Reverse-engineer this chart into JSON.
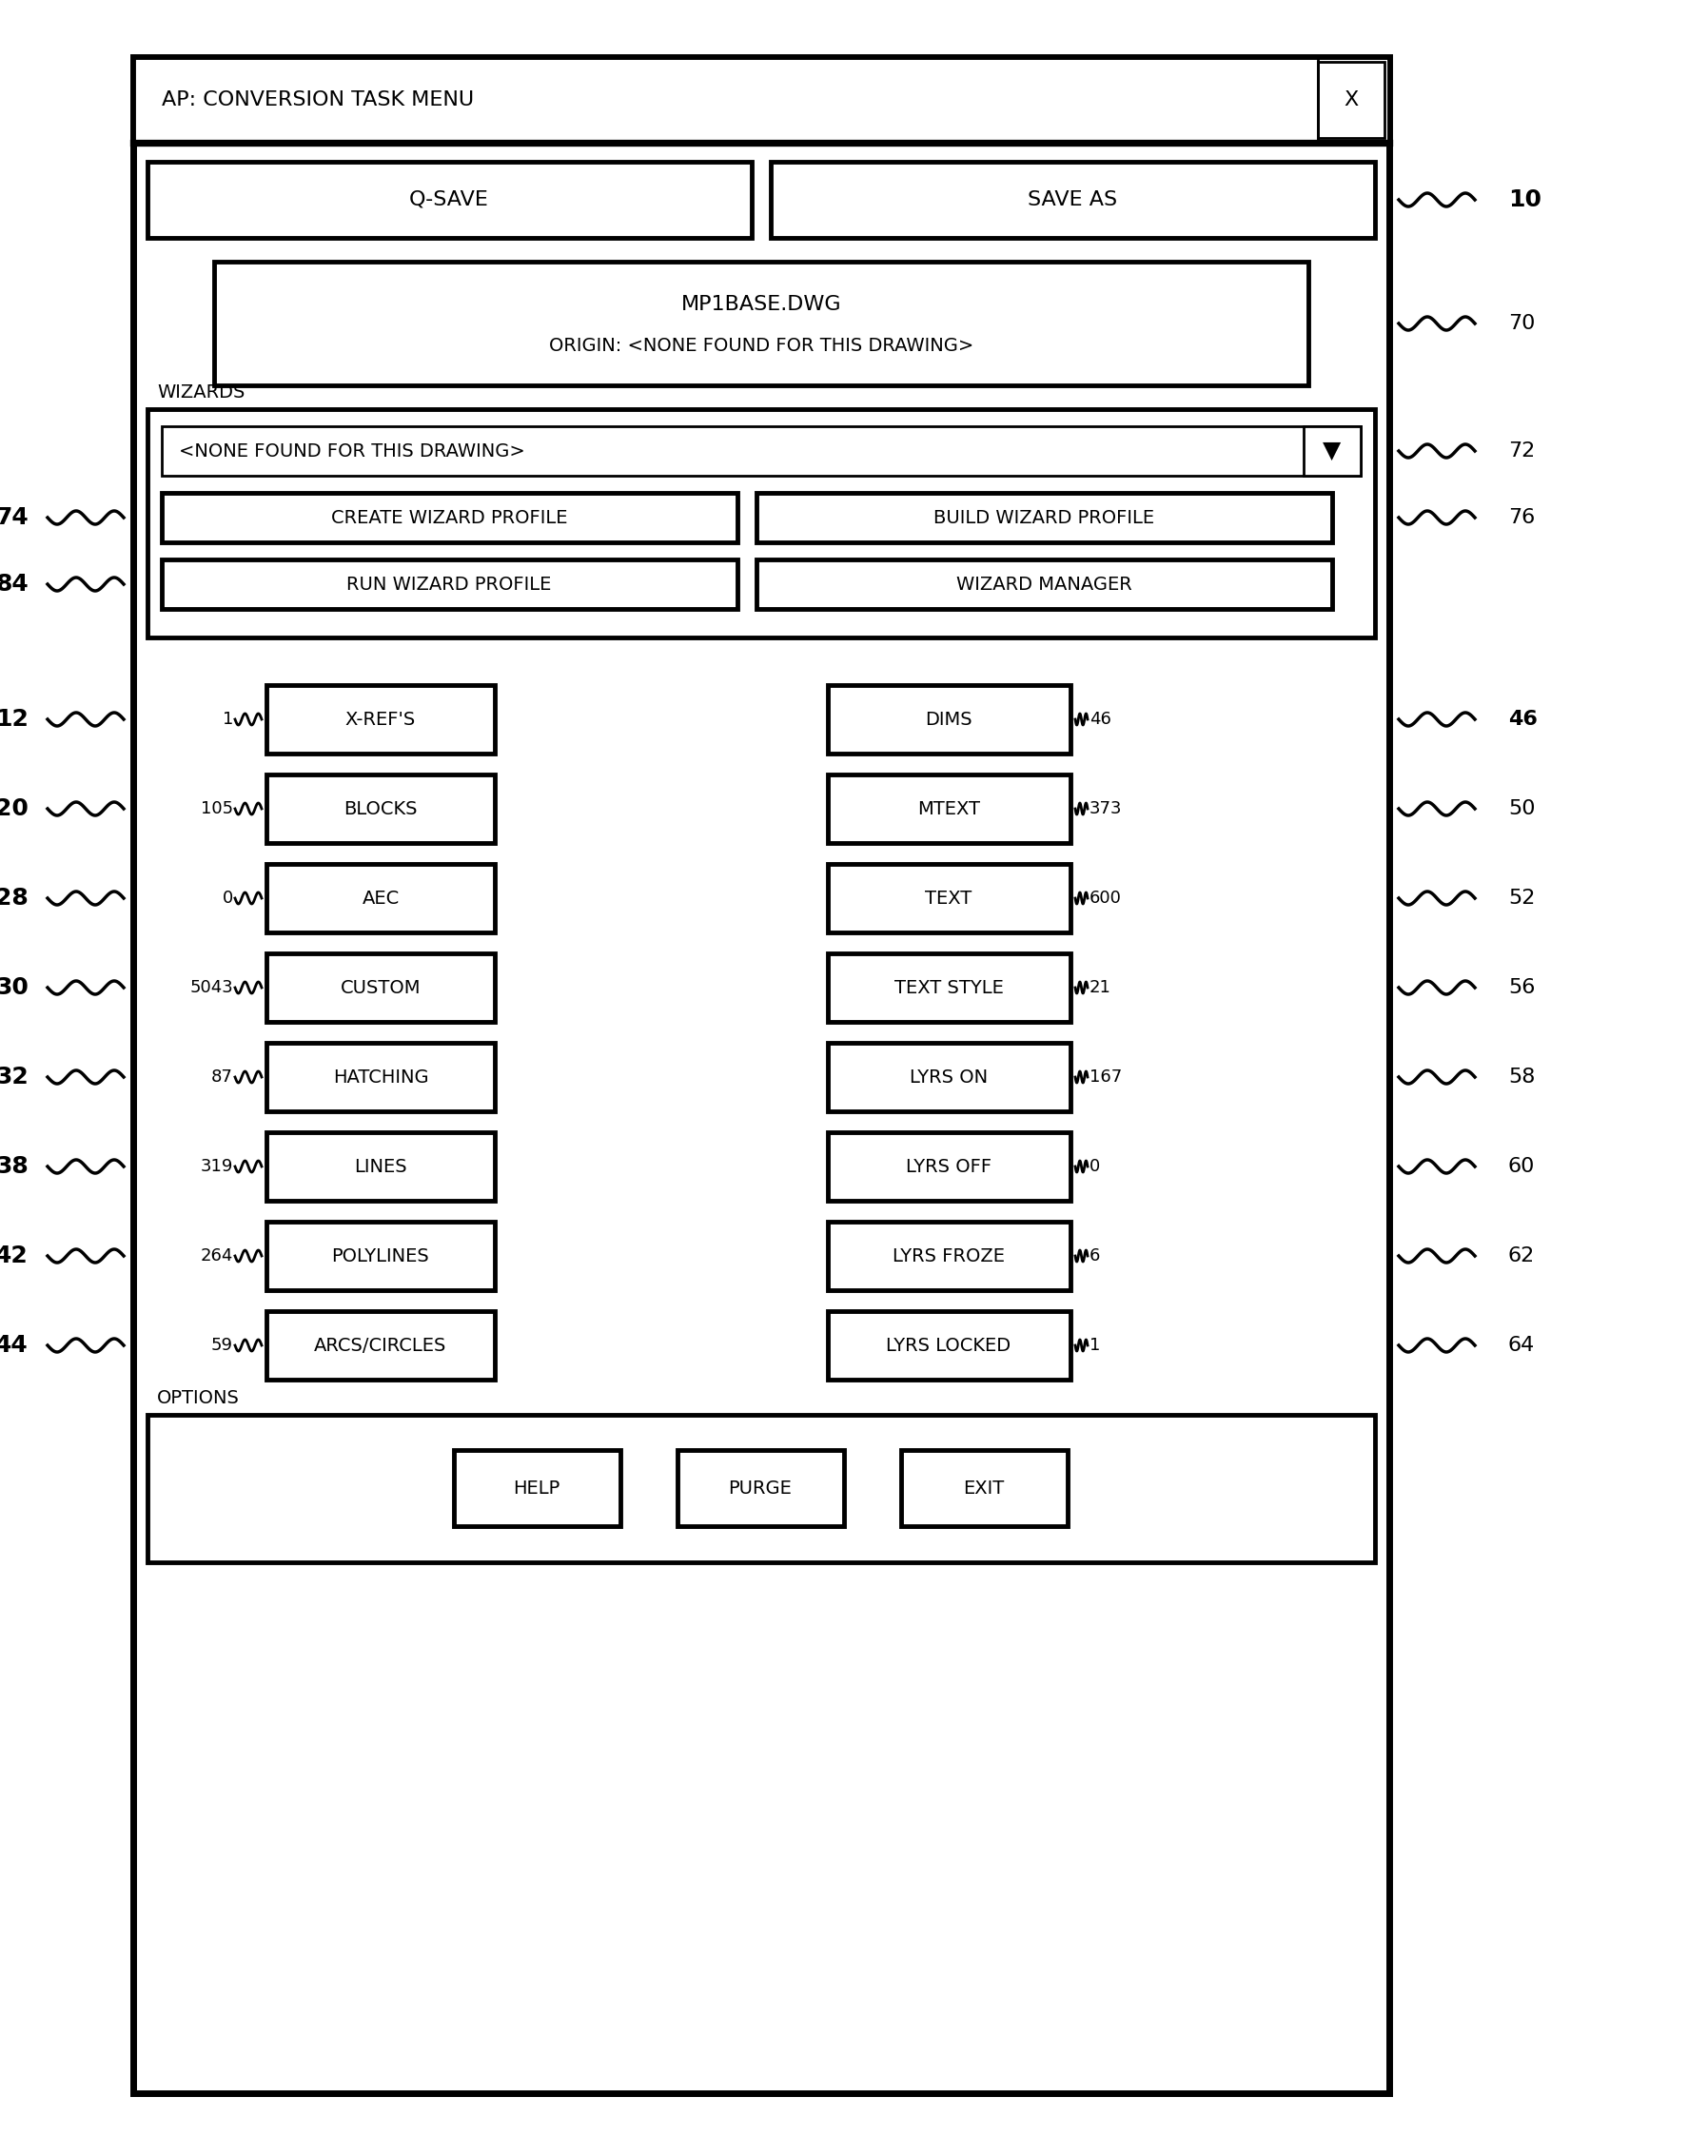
{
  "bg_color": "#ffffff",
  "title_text": "AP: CONVERSION TASK MENU",
  "x_btn_text": "X",
  "qsave_btn": "Q-SAVE",
  "saveas_btn": "SAVE AS",
  "file_box_lines": [
    "MP1BASE.DWG",
    "ORIGIN: <NONE FOUND FOR THIS DRAWING>"
  ],
  "wizards_label": "WIZARDS",
  "dropdown_text": "<NONE FOUND FOR THIS DRAWING>",
  "create_wizard": "CREATE WIZARD PROFILE",
  "build_wizard": "BUILD WIZARD PROFILE",
  "run_wizard": "RUN WIZARD PROFILE",
  "wizard_manager": "WIZARD MANAGER",
  "left_items": [
    {
      "label": "X-REF'S",
      "count": "1",
      "ref": "12"
    },
    {
      "label": "BLOCKS",
      "count": "105",
      "ref": "20"
    },
    {
      "label": "AEC",
      "count": "0",
      "ref": "28"
    },
    {
      "label": "CUSTOM",
      "count": "5043",
      "ref": "30"
    },
    {
      "label": "HATCHING",
      "count": "87",
      "ref": "32"
    },
    {
      "label": "LINES",
      "count": "319",
      "ref": "38"
    },
    {
      "label": "POLYLINES",
      "count": "264",
      "ref": "42"
    },
    {
      "label": "ARCS/CIRCLES",
      "count": "59",
      "ref": "44"
    }
  ],
  "right_items": [
    {
      "label": "DIMS",
      "count": "46",
      "ref": "46",
      "ref_bold": true
    },
    {
      "label": "MTEXT",
      "count": "373",
      "ref": "50",
      "ref_bold": false
    },
    {
      "label": "TEXT",
      "count": "600",
      "ref": "52",
      "ref_bold": false
    },
    {
      "label": "TEXT STYLE",
      "count": "21",
      "ref": "56",
      "ref_bold": false
    },
    {
      "label": "LYRS ON",
      "count": "167",
      "ref": "58",
      "ref_bold": false
    },
    {
      "label": "LYRS OFF",
      "count": "0",
      "ref": "60",
      "ref_bold": false
    },
    {
      "label": "LYRS FROZE",
      "count": "6",
      "ref": "62",
      "ref_bold": false
    },
    {
      "label": "LYRS LOCKED",
      "count": "1",
      "ref": "64",
      "ref_bold": false
    }
  ],
  "options_label": "OPTIONS",
  "option_buttons": [
    "HELP",
    "PURGE",
    "EXIT"
  ],
  "ref_10": {
    "text": "10",
    "bold": true
  },
  "ref_70": {
    "text": "70",
    "bold": false
  },
  "ref_72": {
    "text": "72",
    "bold": false
  },
  "ref_76": {
    "text": "76",
    "bold": false
  },
  "ref_74": {
    "text": "74",
    "bold": true
  },
  "ref_84": {
    "text": "84",
    "bold": true
  },
  "ref_46_right": {
    "text": "46",
    "bold": true
  }
}
